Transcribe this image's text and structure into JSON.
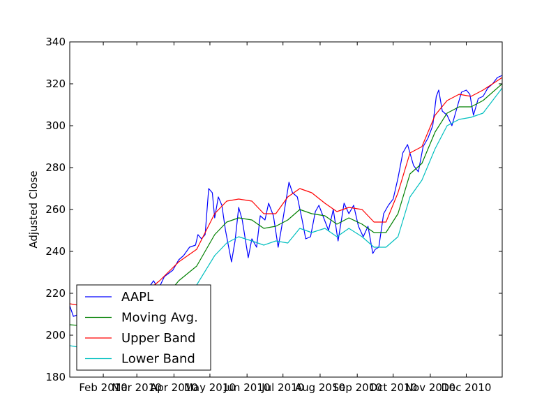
{
  "chart_data": {
    "type": "line",
    "title": "",
    "xlabel": "",
    "ylabel": "Adjusted Close",
    "xlim": [
      "2010-01-04",
      "2010-12-31"
    ],
    "ylim": [
      180,
      340
    ],
    "yticks": [
      180,
      200,
      220,
      240,
      260,
      280,
      300,
      320,
      340
    ],
    "xticks": [
      {
        "date": "2010-02-01",
        "label": "Feb 2010"
      },
      {
        "date": "2010-03-01",
        "label": "Mar 2010"
      },
      {
        "date": "2010-04-01",
        "label": "Apr 2010"
      },
      {
        "date": "2010-05-01",
        "label": "May 2010"
      },
      {
        "date": "2010-06-01",
        "label": "Jun 2010"
      },
      {
        "date": "2010-07-01",
        "label": "Jul 2010"
      },
      {
        "date": "2010-08-01",
        "label": "Aug 2010"
      },
      {
        "date": "2010-09-01",
        "label": "Sep 2010"
      },
      {
        "date": "2010-10-01",
        "label": "Oct 2010"
      },
      {
        "date": "2010-11-01",
        "label": "Nov 2010"
      },
      {
        "date": "2010-12-01",
        "label": "Dec 2010"
      }
    ],
    "grid": false,
    "legend_position": "lower-left",
    "series": [
      {
        "name": "AAPL",
        "color": "#0000ff",
        "points": [
          [
            "2010-01-04",
            214
          ],
          [
            "2010-01-07",
            209
          ],
          [
            "2010-01-12",
            210
          ],
          [
            "2010-01-20",
            206
          ],
          [
            "2010-01-27",
            200
          ],
          [
            "2010-02-03",
            198
          ],
          [
            "2010-02-10",
            200
          ],
          [
            "2010-02-17",
            205
          ],
          [
            "2010-02-24",
            208
          ],
          [
            "2010-03-03",
            215
          ],
          [
            "2010-03-10",
            222
          ],
          [
            "2010-03-15",
            226
          ],
          [
            "2010-03-19",
            222
          ],
          [
            "2010-03-24",
            228
          ],
          [
            "2010-03-31",
            231
          ],
          [
            "2010-04-05",
            236
          ],
          [
            "2010-04-09",
            238
          ],
          [
            "2010-04-14",
            242
          ],
          [
            "2010-04-19",
            243
          ],
          [
            "2010-04-21",
            248
          ],
          [
            "2010-04-24",
            246
          ],
          [
            "2010-04-27",
            248
          ],
          [
            "2010-04-30",
            270
          ],
          [
            "2010-05-03",
            268
          ],
          [
            "2010-05-05",
            256
          ],
          [
            "2010-05-08",
            266
          ],
          [
            "2010-05-11",
            262
          ],
          [
            "2010-05-14",
            250
          ],
          [
            "2010-05-19",
            235
          ],
          [
            "2010-05-22",
            245
          ],
          [
            "2010-05-25",
            261
          ],
          [
            "2010-05-28",
            255
          ],
          [
            "2010-06-02",
            237
          ],
          [
            "2010-06-05",
            246
          ],
          [
            "2010-06-09",
            242
          ],
          [
            "2010-06-12",
            257
          ],
          [
            "2010-06-16",
            255
          ],
          [
            "2010-06-19",
            263
          ],
          [
            "2010-06-23",
            257
          ],
          [
            "2010-06-27",
            242
          ],
          [
            "2010-06-30",
            252
          ],
          [
            "2010-07-06",
            273
          ],
          [
            "2010-07-09",
            268
          ],
          [
            "2010-07-13",
            266
          ],
          [
            "2010-07-17",
            255
          ],
          [
            "2010-07-20",
            246
          ],
          [
            "2010-07-24",
            247
          ],
          [
            "2010-07-28",
            259
          ],
          [
            "2010-07-31",
            262
          ],
          [
            "2010-08-04",
            256
          ],
          [
            "2010-08-08",
            250
          ],
          [
            "2010-08-12",
            260
          ],
          [
            "2010-08-16",
            245
          ],
          [
            "2010-08-21",
            263
          ],
          [
            "2010-08-25",
            258
          ],
          [
            "2010-08-29",
            262
          ],
          [
            "2010-09-02",
            252
          ],
          [
            "2010-09-06",
            247
          ],
          [
            "2010-09-10",
            252
          ],
          [
            "2010-09-14",
            239
          ],
          [
            "2010-09-16",
            241
          ],
          [
            "2010-09-19",
            242
          ],
          [
            "2010-09-23",
            258
          ],
          [
            "2010-09-27",
            262
          ],
          [
            "2010-10-01",
            265
          ],
          [
            "2010-10-05",
            275
          ],
          [
            "2010-10-09",
            287
          ],
          [
            "2010-10-13",
            291
          ],
          [
            "2010-10-18",
            281
          ],
          [
            "2010-10-22",
            278
          ],
          [
            "2010-10-26",
            290
          ],
          [
            "2010-10-30",
            294
          ],
          [
            "2010-11-03",
            300
          ],
          [
            "2010-11-06",
            314
          ],
          [
            "2010-11-08",
            317
          ],
          [
            "2010-11-11",
            307
          ],
          [
            "2010-11-15",
            305
          ],
          [
            "2010-11-19",
            300
          ],
          [
            "2010-11-23",
            308
          ],
          [
            "2010-11-27",
            316
          ],
          [
            "2010-12-01",
            317
          ],
          [
            "2010-12-04",
            315
          ],
          [
            "2010-12-07",
            305
          ],
          [
            "2010-12-11",
            313
          ],
          [
            "2010-12-15",
            314
          ],
          [
            "2010-12-19",
            318
          ],
          [
            "2010-12-23",
            320
          ],
          [
            "2010-12-27",
            323
          ],
          [
            "2010-12-31",
            324
          ]
        ]
      },
      {
        "name": "Moving Avg.",
        "color": "#008000",
        "points": [
          [
            "2010-01-04",
            205
          ],
          [
            "2010-01-25",
            204
          ],
          [
            "2010-02-15",
            203
          ],
          [
            "2010-03-05",
            208
          ],
          [
            "2010-03-20",
            215
          ],
          [
            "2010-04-05",
            226
          ],
          [
            "2010-04-20",
            233
          ],
          [
            "2010-05-05",
            248
          ],
          [
            "2010-05-15",
            254
          ],
          [
            "2010-05-25",
            256
          ],
          [
            "2010-06-05",
            255
          ],
          [
            "2010-06-15",
            251
          ],
          [
            "2010-06-25",
            252
          ],
          [
            "2010-07-05",
            255
          ],
          [
            "2010-07-15",
            260
          ],
          [
            "2010-07-25",
            258
          ],
          [
            "2010-08-05",
            257
          ],
          [
            "2010-08-15",
            253
          ],
          [
            "2010-08-25",
            256
          ],
          [
            "2010-09-05",
            253
          ],
          [
            "2010-09-15",
            249
          ],
          [
            "2010-09-25",
            249
          ],
          [
            "2010-10-05",
            258
          ],
          [
            "2010-10-15",
            277
          ],
          [
            "2010-10-25",
            282
          ],
          [
            "2010-11-05",
            297
          ],
          [
            "2010-11-15",
            306
          ],
          [
            "2010-11-25",
            309
          ],
          [
            "2010-12-05",
            309
          ],
          [
            "2010-12-15",
            312
          ],
          [
            "2010-12-31",
            320
          ]
        ]
      },
      {
        "name": "Upper Band",
        "color": "#ff0000",
        "points": [
          [
            "2010-01-04",
            215
          ],
          [
            "2010-01-25",
            213
          ],
          [
            "2010-02-15",
            214
          ],
          [
            "2010-03-05",
            219
          ],
          [
            "2010-03-20",
            226
          ],
          [
            "2010-04-05",
            235
          ],
          [
            "2010-04-20",
            241
          ],
          [
            "2010-05-05",
            258
          ],
          [
            "2010-05-15",
            264
          ],
          [
            "2010-05-25",
            265
          ],
          [
            "2010-06-05",
            264
          ],
          [
            "2010-06-15",
            258
          ],
          [
            "2010-06-25",
            258
          ],
          [
            "2010-07-05",
            266
          ],
          [
            "2010-07-15",
            270
          ],
          [
            "2010-07-25",
            268
          ],
          [
            "2010-08-05",
            263
          ],
          [
            "2010-08-15",
            259
          ],
          [
            "2010-08-25",
            261
          ],
          [
            "2010-09-05",
            260
          ],
          [
            "2010-09-15",
            254
          ],
          [
            "2010-09-25",
            254
          ],
          [
            "2010-10-05",
            268
          ],
          [
            "2010-10-15",
            287
          ],
          [
            "2010-10-25",
            290
          ],
          [
            "2010-11-05",
            305
          ],
          [
            "2010-11-15",
            312
          ],
          [
            "2010-11-25",
            315
          ],
          [
            "2010-12-05",
            314
          ],
          [
            "2010-12-15",
            317
          ],
          [
            "2010-12-31",
            323
          ]
        ]
      },
      {
        "name": "Lower Band",
        "color": "#00bfbf",
        "points": [
          [
            "2010-01-04",
            195
          ],
          [
            "2010-01-25",
            193
          ],
          [
            "2010-02-15",
            192
          ],
          [
            "2010-03-05",
            197
          ],
          [
            "2010-03-20",
            206
          ],
          [
            "2010-04-05",
            216
          ],
          [
            "2010-04-20",
            224
          ],
          [
            "2010-05-05",
            238
          ],
          [
            "2010-05-15",
            244
          ],
          [
            "2010-05-25",
            247
          ],
          [
            "2010-06-05",
            245
          ],
          [
            "2010-06-15",
            243
          ],
          [
            "2010-06-25",
            245
          ],
          [
            "2010-07-05",
            244
          ],
          [
            "2010-07-15",
            251
          ],
          [
            "2010-07-25",
            249
          ],
          [
            "2010-08-05",
            251
          ],
          [
            "2010-08-15",
            247
          ],
          [
            "2010-08-25",
            251
          ],
          [
            "2010-09-05",
            247
          ],
          [
            "2010-09-15",
            242
          ],
          [
            "2010-09-25",
            242
          ],
          [
            "2010-10-05",
            247
          ],
          [
            "2010-10-15",
            266
          ],
          [
            "2010-10-25",
            274
          ],
          [
            "2010-11-05",
            289
          ],
          [
            "2010-11-15",
            300
          ],
          [
            "2010-11-25",
            303
          ],
          [
            "2010-12-05",
            304
          ],
          [
            "2010-12-15",
            306
          ],
          [
            "2010-12-31",
            318
          ]
        ]
      }
    ]
  }
}
